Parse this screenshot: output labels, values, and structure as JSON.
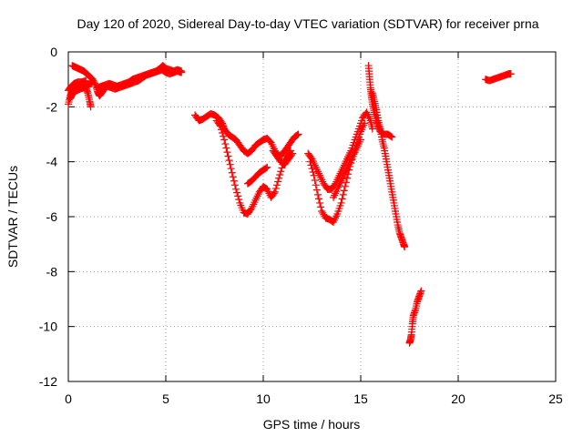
{
  "chart_data": {
    "type": "scatter",
    "title": "Day 120 of 2020, Sidereal Day-to-day VTEC variation (SDTVAR) for receiver prna",
    "xlabel": "GPS time / hours",
    "ylabel": "SDTVAR / TECUs",
    "xlim": [
      0,
      25
    ],
    "ylim": [
      -12,
      0
    ],
    "xticks": [
      0,
      5,
      10,
      15,
      20,
      25
    ],
    "yticks": [
      0,
      -2,
      -4,
      -6,
      -8,
      -10,
      -12
    ],
    "grid": true,
    "marker": "+",
    "color": "#ff0000",
    "series": [
      {
        "segments": [
          [
            [
              0.0,
              -1.9
            ],
            [
              0.1,
              -1.6
            ],
            [
              0.2,
              -1.4
            ],
            [
              0.35,
              -1.3
            ],
            [
              0.5,
              -1.2
            ],
            [
              0.7,
              -1.2
            ],
            [
              0.9,
              -1.3
            ],
            [
              1.0,
              -1.5
            ],
            [
              1.1,
              -1.8
            ],
            [
              1.15,
              -2.0
            ]
          ],
          [
            [
              0.0,
              -1.4
            ],
            [
              0.15,
              -1.25
            ],
            [
              0.3,
              -1.15
            ],
            [
              0.5,
              -1.1
            ],
            [
              0.7,
              -1.1
            ],
            [
              0.9,
              -1.05
            ]
          ],
          [
            [
              0.1,
              -1.7
            ],
            [
              0.2,
              -1.55
            ],
            [
              0.3,
              -1.45
            ],
            [
              0.45,
              -1.4
            ],
            [
              0.6,
              -1.35
            ],
            [
              0.8,
              -1.3
            ],
            [
              1.0,
              -1.2
            ],
            [
              1.2,
              -1.15
            ]
          ],
          [
            [
              0.2,
              -0.5
            ],
            [
              0.35,
              -0.55
            ],
            [
              0.5,
              -0.6
            ],
            [
              0.65,
              -0.65
            ],
            [
              0.8,
              -0.7
            ],
            [
              0.95,
              -0.8
            ],
            [
              1.1,
              -0.9
            ],
            [
              1.25,
              -1.0
            ],
            [
              1.4,
              -1.2
            ],
            [
              1.5,
              -1.45
            ],
            [
              1.6,
              -1.6
            ],
            [
              1.7,
              -1.5
            ],
            [
              1.8,
              -1.4
            ],
            [
              1.9,
              -1.3
            ],
            [
              2.0,
              -1.25
            ],
            [
              2.2,
              -1.3
            ],
            [
              2.4,
              -1.35
            ],
            [
              2.6,
              -1.3
            ],
            [
              2.8,
              -1.25
            ],
            [
              3.0,
              -1.2
            ],
            [
              3.2,
              -1.15
            ],
            [
              3.4,
              -1.1
            ],
            [
              3.6,
              -1.05
            ],
            [
              3.8,
              -0.95
            ],
            [
              4.0,
              -0.85
            ],
            [
              4.2,
              -0.8
            ],
            [
              4.4,
              -0.75
            ],
            [
              4.6,
              -0.7
            ],
            [
              4.8,
              -0.65
            ],
            [
              5.0,
              -0.75
            ],
            [
              5.2,
              -0.8
            ],
            [
              5.4,
              -0.75
            ],
            [
              5.6,
              -0.7
            ],
            [
              5.8,
              -0.75
            ]
          ],
          [
            [
              1.5,
              -1.3
            ],
            [
              1.7,
              -1.25
            ],
            [
              1.9,
              -1.2
            ],
            [
              2.1,
              -1.15
            ],
            [
              2.3,
              -1.2
            ],
            [
              2.5,
              -1.25
            ],
            [
              2.7,
              -1.2
            ],
            [
              2.9,
              -1.15
            ],
            [
              3.1,
              -1.1
            ],
            [
              3.3,
              -1.0
            ],
            [
              3.5,
              -0.95
            ],
            [
              3.7,
              -0.9
            ],
            [
              3.9,
              -0.85
            ],
            [
              4.1,
              -0.8
            ],
            [
              4.3,
              -0.75
            ],
            [
              4.5,
              -0.7
            ],
            [
              4.7,
              -0.6
            ],
            [
              4.85,
              -0.5
            ],
            [
              5.0,
              -0.6
            ],
            [
              5.2,
              -0.65
            ],
            [
              5.4,
              -0.7
            ],
            [
              5.6,
              -0.65
            ],
            [
              5.8,
              -0.7
            ]
          ],
          [
            [
              6.5,
              -2.3
            ],
            [
              6.7,
              -2.5
            ],
            [
              6.9,
              -2.45
            ],
            [
              7.1,
              -2.35
            ],
            [
              7.3,
              -2.25
            ],
            [
              7.5,
              -2.3
            ],
            [
              7.7,
              -2.4
            ],
            [
              7.9,
              -2.6
            ],
            [
              8.0,
              -2.8
            ],
            [
              8.2,
              -3.0
            ],
            [
              8.4,
              -3.1
            ],
            [
              8.6,
              -3.2
            ],
            [
              8.8,
              -3.4
            ],
            [
              9.0,
              -3.6
            ],
            [
              9.2,
              -3.7
            ],
            [
              9.4,
              -3.6
            ],
            [
              9.6,
              -3.4
            ],
            [
              9.8,
              -3.3
            ],
            [
              10.0,
              -3.2
            ],
            [
              10.2,
              -3.15
            ],
            [
              10.4,
              -3.3
            ],
            [
              10.6,
              -3.6
            ],
            [
              10.8,
              -3.8
            ],
            [
              11.0,
              -3.7
            ],
            [
              11.2,
              -3.5
            ],
            [
              11.4,
              -3.3
            ],
            [
              11.6,
              -3.1
            ],
            [
              11.8,
              -3.0
            ]
          ],
          [
            [
              7.6,
              -2.5
            ],
            [
              7.8,
              -2.7
            ],
            [
              8.0,
              -3.2
            ],
            [
              8.2,
              -3.8
            ],
            [
              8.4,
              -4.4
            ],
            [
              8.6,
              -5.0
            ],
            [
              8.8,
              -5.5
            ],
            [
              9.0,
              -5.85
            ],
            [
              9.2,
              -5.9
            ],
            [
              9.4,
              -5.7
            ],
            [
              9.6,
              -5.4
            ],
            [
              9.8,
              -5.1
            ],
            [
              10.0,
              -4.9
            ],
            [
              10.2,
              -5.0
            ],
            [
              10.4,
              -5.3
            ],
            [
              10.6,
              -5.1
            ],
            [
              10.8,
              -4.6
            ],
            [
              11.0,
              -4.1
            ],
            [
              11.2,
              -3.8
            ],
            [
              11.4,
              -3.6
            ]
          ],
          [
            [
              9.2,
              -4.8
            ],
            [
              9.4,
              -4.7
            ],
            [
              9.6,
              -4.55
            ],
            [
              9.8,
              -4.4
            ],
            [
              10.0,
              -4.3
            ],
            [
              10.2,
              -4.2
            ]
          ],
          [
            [
              10.5,
              -3.6
            ],
            [
              10.7,
              -3.8
            ],
            [
              10.9,
              -4.0
            ],
            [
              11.1,
              -4.1
            ],
            [
              11.3,
              -3.9
            ],
            [
              11.5,
              -3.7
            ]
          ],
          [
            [
              12.3,
              -3.7
            ],
            [
              12.5,
              -3.9
            ],
            [
              12.7,
              -4.2
            ],
            [
              12.9,
              -4.5
            ],
            [
              13.1,
              -4.8
            ],
            [
              13.3,
              -5.0
            ],
            [
              13.5,
              -5.0
            ],
            [
              13.7,
              -4.8
            ],
            [
              13.9,
              -4.5
            ],
            [
              14.1,
              -4.2
            ],
            [
              14.3,
              -3.9
            ],
            [
              14.5,
              -3.6
            ],
            [
              14.7,
              -3.2
            ],
            [
              14.9,
              -2.8
            ],
            [
              15.1,
              -2.4
            ],
            [
              15.3,
              -2.2
            ],
            [
              15.5,
              -2.5
            ],
            [
              15.6,
              -2.8
            ]
          ],
          [
            [
              12.4,
              -4.0
            ],
            [
              12.6,
              -4.5
            ],
            [
              12.8,
              -5.2
            ],
            [
              13.0,
              -5.8
            ],
            [
              13.2,
              -6.05
            ],
            [
              13.4,
              -6.1
            ],
            [
              13.6,
              -6.2
            ],
            [
              13.8,
              -5.9
            ],
            [
              14.0,
              -5.5
            ],
            [
              14.2,
              -4.9
            ],
            [
              14.4,
              -4.3
            ],
            [
              14.6,
              -3.8
            ],
            [
              14.8,
              -3.3
            ],
            [
              15.0,
              -2.9
            ],
            [
              15.2,
              -2.6
            ]
          ],
          [
            [
              13.6,
              -5.3
            ],
            [
              13.8,
              -5.0
            ],
            [
              14.0,
              -4.7
            ],
            [
              14.2,
              -4.4
            ],
            [
              14.4,
              -4.1
            ],
            [
              14.6,
              -3.8
            ],
            [
              14.8,
              -3.5
            ],
            [
              15.0,
              -3.2
            ]
          ],
          [
            [
              15.4,
              -0.5
            ],
            [
              15.45,
              -0.9
            ],
            [
              15.5,
              -1.3
            ],
            [
              15.55,
              -1.6
            ],
            [
              15.6,
              -1.9
            ],
            [
              15.7,
              -2.2
            ],
            [
              15.8,
              -2.5
            ],
            [
              15.9,
              -2.7
            ],
            [
              16.0,
              -2.9
            ],
            [
              16.2,
              -3.0
            ],
            [
              16.4,
              -3.0
            ],
            [
              16.6,
              -3.1
            ]
          ],
          [
            [
              15.6,
              -1.5
            ],
            [
              15.7,
              -1.8
            ],
            [
              15.8,
              -2.1
            ],
            [
              15.9,
              -2.5
            ],
            [
              16.0,
              -2.8
            ],
            [
              16.1,
              -3.2
            ],
            [
              16.2,
              -3.5
            ],
            [
              16.3,
              -3.9
            ],
            [
              16.4,
              -4.3
            ],
            [
              16.5,
              -4.7
            ],
            [
              16.6,
              -5.1
            ],
            [
              16.7,
              -5.5
            ],
            [
              16.8,
              -5.9
            ],
            [
              16.9,
              -6.3
            ],
            [
              17.0,
              -6.6
            ],
            [
              17.1,
              -6.8
            ],
            [
              17.2,
              -7.0
            ],
            [
              17.25,
              -7.1
            ]
          ],
          [
            [
              17.5,
              -10.6
            ],
            [
              17.55,
              -10.5
            ],
            [
              17.6,
              -10.3
            ],
            [
              17.65,
              -9.9
            ],
            [
              17.7,
              -9.6
            ],
            [
              17.8,
              -9.4
            ],
            [
              17.9,
              -9.1
            ],
            [
              18.0,
              -8.9
            ],
            [
              18.1,
              -8.7
            ]
          ],
          [
            [
              21.4,
              -1.0
            ],
            [
              21.6,
              -1.05
            ],
            [
              21.8,
              -1.0
            ],
            [
              22.0,
              -0.95
            ],
            [
              22.2,
              -0.9
            ],
            [
              22.4,
              -0.85
            ],
            [
              22.6,
              -0.8
            ],
            [
              22.7,
              -0.8
            ]
          ]
        ]
      }
    ]
  }
}
